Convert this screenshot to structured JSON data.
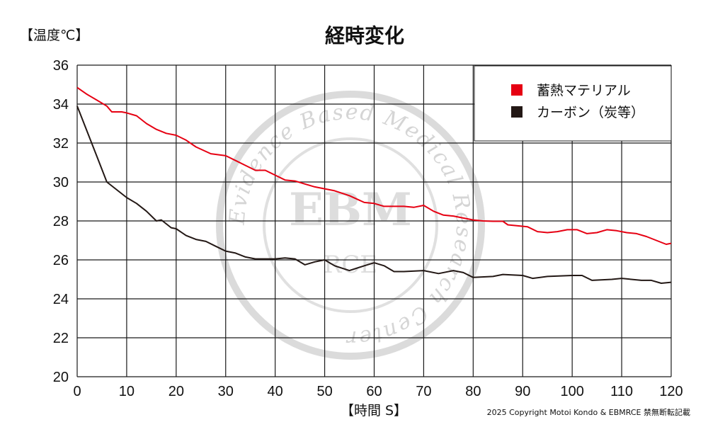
{
  "chart_data": {
    "type": "line",
    "title": "経時変化",
    "ylabel": "【温度℃】",
    "xlabel": "【時間 S】",
    "xlim": [
      0,
      120
    ],
    "ylim": [
      20,
      36
    ],
    "x_ticks": [
      0,
      10,
      20,
      30,
      40,
      50,
      60,
      70,
      80,
      90,
      100,
      110,
      120
    ],
    "y_ticks": [
      20,
      22,
      24,
      26,
      28,
      30,
      32,
      34,
      36
    ],
    "grid": true,
    "legend_position": "top-right",
    "series": [
      {
        "name": "蓄熱マテリアル",
        "color": "#e60012",
        "points": [
          [
            0,
            34.85
          ],
          [
            2,
            34.5
          ],
          [
            4,
            34.2
          ],
          [
            6,
            33.9
          ],
          [
            7,
            33.6
          ],
          [
            9,
            33.6
          ],
          [
            10,
            33.55
          ],
          [
            12,
            33.4
          ],
          [
            14,
            33.0
          ],
          [
            16,
            32.7
          ],
          [
            18,
            32.5
          ],
          [
            20,
            32.4
          ],
          [
            22,
            32.15
          ],
          [
            24,
            31.8
          ],
          [
            27,
            31.45
          ],
          [
            30,
            31.35
          ],
          [
            32,
            31.1
          ],
          [
            34,
            30.85
          ],
          [
            36,
            30.6
          ],
          [
            38,
            30.6
          ],
          [
            40,
            30.35
          ],
          [
            42,
            30.1
          ],
          [
            44,
            30.05
          ],
          [
            46,
            29.9
          ],
          [
            48,
            29.75
          ],
          [
            50,
            29.65
          ],
          [
            52,
            29.55
          ],
          [
            55,
            29.3
          ],
          [
            58,
            28.95
          ],
          [
            60,
            28.9
          ],
          [
            62,
            28.75
          ],
          [
            64,
            28.75
          ],
          [
            66,
            28.75
          ],
          [
            68,
            28.7
          ],
          [
            70,
            28.8
          ],
          [
            72,
            28.5
          ],
          [
            74,
            28.3
          ],
          [
            76,
            28.25
          ],
          [
            78,
            28.15
          ],
          [
            80,
            28.05
          ],
          [
            82,
            28.0
          ],
          [
            84,
            27.98
          ],
          [
            86,
            27.98
          ],
          [
            87,
            27.8
          ],
          [
            89,
            27.75
          ],
          [
            91,
            27.7
          ],
          [
            93,
            27.45
          ],
          [
            95,
            27.4
          ],
          [
            97,
            27.45
          ],
          [
            99,
            27.55
          ],
          [
            101,
            27.55
          ],
          [
            103,
            27.35
          ],
          [
            105,
            27.4
          ],
          [
            107,
            27.55
          ],
          [
            109,
            27.5
          ],
          [
            111,
            27.4
          ],
          [
            113,
            27.35
          ],
          [
            115,
            27.2
          ],
          [
            117,
            27.0
          ],
          [
            119,
            26.8
          ],
          [
            120,
            26.85
          ]
        ]
      },
      {
        "name": "カーボン（炭等）",
        "color": "#231815",
        "points": [
          [
            0,
            33.9
          ],
          [
            2,
            32.6
          ],
          [
            4,
            31.3
          ],
          [
            6,
            30.0
          ],
          [
            8,
            29.6
          ],
          [
            10,
            29.2
          ],
          [
            12,
            28.9
          ],
          [
            14,
            28.5
          ],
          [
            16,
            28.0
          ],
          [
            17,
            28.05
          ],
          [
            19,
            27.65
          ],
          [
            20,
            27.6
          ],
          [
            22,
            27.25
          ],
          [
            24,
            27.05
          ],
          [
            26,
            26.95
          ],
          [
            28,
            26.7
          ],
          [
            30,
            26.45
          ],
          [
            32,
            26.35
          ],
          [
            34,
            26.15
          ],
          [
            36,
            26.05
          ],
          [
            38,
            26.05
          ],
          [
            40,
            26.05
          ],
          [
            42,
            26.1
          ],
          [
            44,
            26.05
          ],
          [
            46,
            25.75
          ],
          [
            48,
            25.9
          ],
          [
            50,
            26.0
          ],
          [
            52,
            25.7
          ],
          [
            55,
            25.45
          ],
          [
            58,
            25.7
          ],
          [
            60,
            25.85
          ],
          [
            62,
            25.7
          ],
          [
            64,
            25.4
          ],
          [
            66,
            25.4
          ],
          [
            70,
            25.45
          ],
          [
            73,
            25.3
          ],
          [
            76,
            25.45
          ],
          [
            78,
            25.35
          ],
          [
            80,
            25.1
          ],
          [
            84,
            25.15
          ],
          [
            86,
            25.25
          ],
          [
            90,
            25.2
          ],
          [
            92,
            25.05
          ],
          [
            95,
            25.15
          ],
          [
            100,
            25.2
          ],
          [
            102,
            25.2
          ],
          [
            104,
            24.95
          ],
          [
            108,
            25.0
          ],
          [
            110,
            25.05
          ],
          [
            114,
            24.95
          ],
          [
            116,
            24.95
          ],
          [
            118,
            24.8
          ],
          [
            120,
            24.85
          ]
        ]
      }
    ],
    "footer": "2025 Copyright Motoi Kondo & EBMRCE 禁無断転記載"
  },
  "watermark": {
    "arc_text": "Evidence Based Medical Research Center",
    "center_main": "EBM",
    "center_sub": "RCE"
  }
}
